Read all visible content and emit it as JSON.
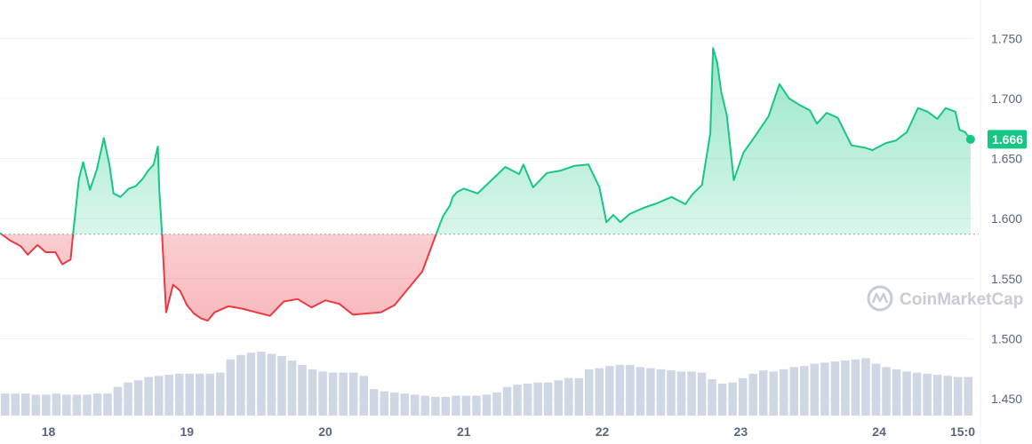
{
  "watermark": "CoinMarketCap",
  "colors": {
    "up": "#16c784",
    "down": "#ea3943",
    "grid": "#eff2f5",
    "text": "#58667e",
    "volume": "#cfd6e4"
  },
  "chart_data": {
    "type": "line",
    "baseline": 1.587,
    "current_value": 1.666,
    "current_label": "1.666",
    "ylim": [
      1.436,
      1.782
    ],
    "yticks": [
      1.45,
      1.5,
      1.55,
      1.6,
      1.65,
      1.7,
      1.75
    ],
    "ytick_labels": [
      "1.450",
      "1.500",
      "1.550",
      "1.600",
      "1.650",
      "1.700",
      "1.750"
    ],
    "xlim": [
      17.65,
      24.68
    ],
    "xticks": [
      18,
      19,
      20,
      21,
      22,
      23,
      24,
      24.625
    ],
    "xtick_labels": [
      "18",
      "19",
      "20",
      "21",
      "22",
      "23",
      "24",
      "15:0"
    ],
    "grid": true,
    "series": [
      {
        "x": [
          17.65,
          17.72,
          17.8,
          17.85,
          17.92,
          17.98,
          18.05,
          18.1,
          18.16,
          18.18,
          18.22,
          18.25,
          18.3,
          18.35,
          18.4,
          18.44,
          18.47,
          18.52,
          18.58,
          18.63,
          18.68,
          18.72,
          18.76,
          18.79,
          18.8,
          18.82,
          18.85,
          18.9,
          18.95,
          19.0,
          19.05,
          19.1,
          19.15,
          19.2,
          19.3,
          19.4,
          19.5,
          19.6,
          19.7,
          19.8,
          19.9,
          20.0,
          20.1,
          20.2,
          20.3,
          20.4,
          20.5,
          20.6,
          20.7,
          20.8,
          20.85,
          20.9,
          20.92,
          20.95,
          21.0,
          21.1,
          21.2,
          21.3,
          21.4,
          21.43,
          21.5,
          21.55,
          21.6,
          21.7,
          21.8,
          21.9,
          21.98,
          22.03,
          22.08,
          22.13,
          22.2,
          22.3,
          22.4,
          22.5,
          22.6,
          22.65,
          22.72,
          22.78,
          22.8,
          22.83,
          22.86,
          22.9,
          22.95,
          23.02,
          23.1,
          23.2,
          23.28,
          23.35,
          23.42,
          23.5,
          23.55,
          23.62,
          23.7,
          23.8,
          23.9,
          23.95,
          24.05,
          24.12,
          24.2,
          24.28,
          24.35,
          24.42,
          24.48,
          24.55,
          24.58,
          24.62,
          24.66
        ],
        "values": [
          1.588,
          1.582,
          1.577,
          1.57,
          1.578,
          1.572,
          1.572,
          1.562,
          1.566,
          1.59,
          1.633,
          1.647,
          1.624,
          1.641,
          1.667,
          1.645,
          1.621,
          1.618,
          1.625,
          1.627,
          1.633,
          1.64,
          1.645,
          1.66,
          1.625,
          1.588,
          1.522,
          1.545,
          1.54,
          1.528,
          1.521,
          1.517,
          1.515,
          1.522,
          1.527,
          1.525,
          1.522,
          1.519,
          1.531,
          1.533,
          1.526,
          1.532,
          1.529,
          1.52,
          1.521,
          1.522,
          1.528,
          1.542,
          1.556,
          1.587,
          1.602,
          1.611,
          1.618,
          1.622,
          1.625,
          1.621,
          1.632,
          1.643,
          1.637,
          1.645,
          1.626,
          1.632,
          1.638,
          1.64,
          1.644,
          1.645,
          1.626,
          1.597,
          1.603,
          1.597,
          1.604,
          1.609,
          1.613,
          1.618,
          1.612,
          1.62,
          1.628,
          1.671,
          1.742,
          1.73,
          1.705,
          1.686,
          1.632,
          1.655,
          1.668,
          1.685,
          1.712,
          1.7,
          1.695,
          1.69,
          1.679,
          1.688,
          1.684,
          1.661,
          1.659,
          1.657,
          1.663,
          1.665,
          1.672,
          1.692,
          1.689,
          1.683,
          1.692,
          1.689,
          1.674,
          1.672,
          1.666
        ]
      }
    ],
    "volume": {
      "values": [
        20,
        20,
        20,
        19,
        19,
        20,
        19,
        19,
        19,
        20,
        20,
        26,
        30,
        32,
        35,
        36,
        37,
        38,
        38,
        38,
        38,
        39,
        51,
        55,
        57,
        58,
        56,
        54,
        50,
        46,
        42,
        40,
        39,
        39,
        39,
        36,
        24,
        22,
        21,
        20,
        19,
        18,
        17,
        17,
        18,
        18,
        18,
        19,
        21,
        26,
        28,
        29,
        30,
        30,
        32,
        34,
        34,
        42,
        43,
        45,
        46,
        46,
        44,
        43,
        42,
        41,
        40,
        40,
        39,
        33,
        29,
        30,
        34,
        38,
        41,
        40,
        42,
        44,
        45,
        47,
        48,
        49,
        50,
        51,
        52,
        47,
        44,
        42,
        40,
        39,
        38,
        37,
        36,
        35,
        35
      ]
    }
  }
}
